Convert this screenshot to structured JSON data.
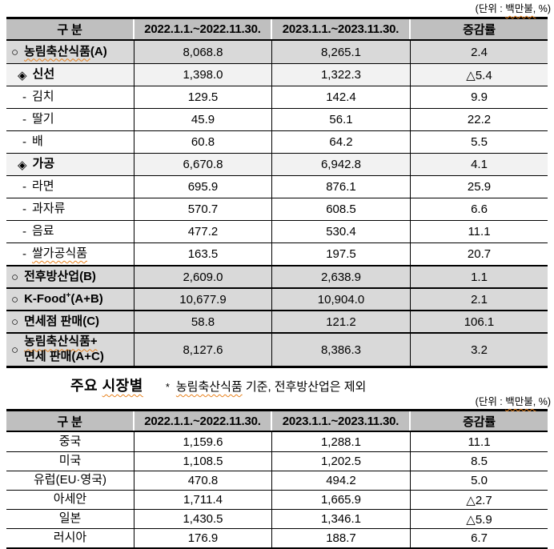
{
  "colors": {
    "header_bg": "#bfbfbf",
    "row_level1_bg": "#d9d9d9",
    "row_level2_bg": "#f2f2f2",
    "border": "#000000",
    "squiggle": "#e8821e",
    "text": "#000000"
  },
  "unit_top": {
    "pre": "(단위 : ",
    "wavy": "백만불,",
    "post": " %)"
  },
  "table1": {
    "headers": [
      "구 분",
      "2022.1.1.~2022.11.30.",
      "2023.1.1.~2023.11.30.",
      "증감률"
    ],
    "rows": [
      {
        "marker": "○",
        "label": "농림축산식품",
        "tail": "(A)",
        "wavy": true,
        "level": 1,
        "shade": "mid",
        "bold": true,
        "values": [
          "8,068.8",
          "8,265.1",
          "2.4"
        ]
      },
      {
        "marker": "◈",
        "label": "신선",
        "level": 2,
        "shade": "light",
        "bold": true,
        "values": [
          "1,398.0",
          "1,322.3",
          "△5.4"
        ]
      },
      {
        "marker": "-",
        "label": "김치",
        "level": 3,
        "values": [
          "129.5",
          "142.4",
          "9.9"
        ]
      },
      {
        "marker": "-",
        "label": "딸기",
        "level": 3,
        "values": [
          "45.9",
          "56.1",
          "22.2"
        ]
      },
      {
        "marker": "-",
        "label": "배",
        "level": 3,
        "values": [
          "60.8",
          "64.2",
          "5.5"
        ]
      },
      {
        "marker": "◈",
        "label": "가공",
        "level": 2,
        "shade": "light",
        "bold": true,
        "values": [
          "6,670.8",
          "6,942.8",
          "4.1"
        ]
      },
      {
        "marker": "-",
        "label": "라면",
        "level": 3,
        "values": [
          "695.9",
          "876.1",
          "25.9"
        ]
      },
      {
        "marker": "-",
        "label": "과자류",
        "level": 3,
        "values": [
          "570.7",
          "608.5",
          "6.6"
        ]
      },
      {
        "marker": "-",
        "label": "음료",
        "level": 3,
        "values": [
          "477.2",
          "530.4",
          "11.1"
        ]
      },
      {
        "marker": "-",
        "label": "쌀가공식품",
        "wavy": true,
        "level": 3,
        "values": [
          "163.5",
          "197.5",
          "20.7"
        ]
      },
      {
        "marker": "○",
        "label": "전후방산업",
        "tail": "(B)",
        "level": 1,
        "shade": "mid",
        "bold": true,
        "thick_top": true,
        "values": [
          "2,609.0",
          "2,638.9",
          "1.1"
        ]
      },
      {
        "marker": "○",
        "label": "K-Food",
        "sup": "+",
        "tail": "(A+B)",
        "level": 1,
        "shade": "mid",
        "bold": true,
        "thick_top": true,
        "values": [
          "10,677.9",
          "10,904.0",
          "2.1"
        ]
      },
      {
        "marker": "○",
        "label": "면세점 판매",
        "tail": "(C)",
        "level": 1,
        "shade": "mid",
        "bold": true,
        "thick_top": true,
        "values": [
          "58.8",
          "121.2",
          "106.1"
        ]
      },
      {
        "marker": "○",
        "label": "농림축산식품+",
        "label2": "면세 판매(A+C)",
        "wavy": true,
        "level": 1,
        "shade": "mid",
        "bold": true,
        "thick_top": true,
        "tall": true,
        "values": [
          "8,127.6",
          "8,386.3",
          "3.2"
        ]
      }
    ]
  },
  "section2": {
    "title_pre": "주요 ",
    "title_wavy": "시장별",
    "star": "*",
    "note_wavy": "농림축산식품",
    "note_rest": " 기준, 전후방산업은 제외",
    "unit": {
      "pre": "(단위 : ",
      "wavy": "백만불,",
      "post": " %)"
    }
  },
  "table2": {
    "headers": [
      "구 분",
      "2022.1.1.~2022.11.30.",
      "2023.1.1.~2023.11.30.",
      "증감률"
    ],
    "rows": [
      {
        "label": "중국",
        "values": [
          "1,159.6",
          "1,288.1",
          "11.1"
        ]
      },
      {
        "label": "미국",
        "values": [
          "1,108.5",
          "1,202.5",
          "8.5"
        ]
      },
      {
        "label": "유럽(EU·영국)",
        "values": [
          "470.8",
          "494.2",
          "5.0"
        ]
      },
      {
        "label": "아세안",
        "values": [
          "1,711.4",
          "1,665.9",
          "△2.7"
        ]
      },
      {
        "label": "일본",
        "values": [
          "1,430.5",
          "1,346.1",
          "△5.9"
        ]
      },
      {
        "label": "러시아",
        "values": [
          "176.9",
          "188.7",
          "6.7"
        ]
      }
    ]
  }
}
